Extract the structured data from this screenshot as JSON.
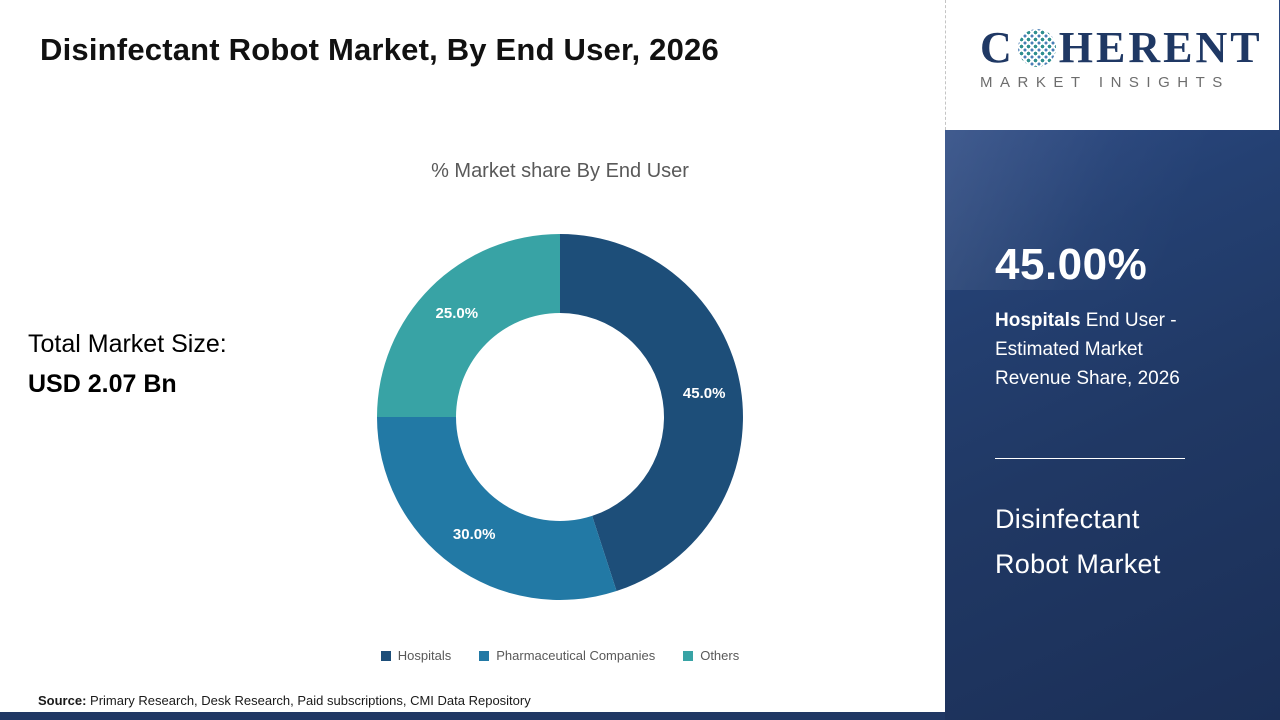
{
  "header": {
    "title": "Disinfectant Robot Market,  By End User, 2026"
  },
  "logo": {
    "c": "C",
    "rest": "HERENT",
    "subtitle": "MARKET INSIGHTS"
  },
  "left": {
    "total_label": "Total Market Size:",
    "total_value": "USD 2.07 Bn"
  },
  "chart_data": {
    "type": "pie",
    "donut": true,
    "title": "% Market share  By End User",
    "categories": [
      "Hospitals",
      "Pharmaceutical Companies",
      "Others"
    ],
    "values": [
      45.0,
      30.0,
      25.0
    ],
    "labels": [
      "45.0%",
      "30.0%",
      "25.0%"
    ],
    "colors": [
      "#1d4e79",
      "#2279a5",
      "#38a3a5"
    ],
    "legend_position": "bottom",
    "start_angle_deg": 0,
    "direction": "clockwise"
  },
  "sidebar": {
    "bg_color": "#203864",
    "stat_value": "45.00%",
    "stat_desc_bold": "Hospitals",
    "stat_desc_rest": " End User - Estimated Market Revenue Share, 2026",
    "name_line1": "Disinfectant",
    "name_line2": "Robot Market"
  },
  "footer": {
    "source_label": "Source:",
    "source_text": " Primary Research, Desk Research, Paid subscriptions, CMI Data Repository"
  }
}
